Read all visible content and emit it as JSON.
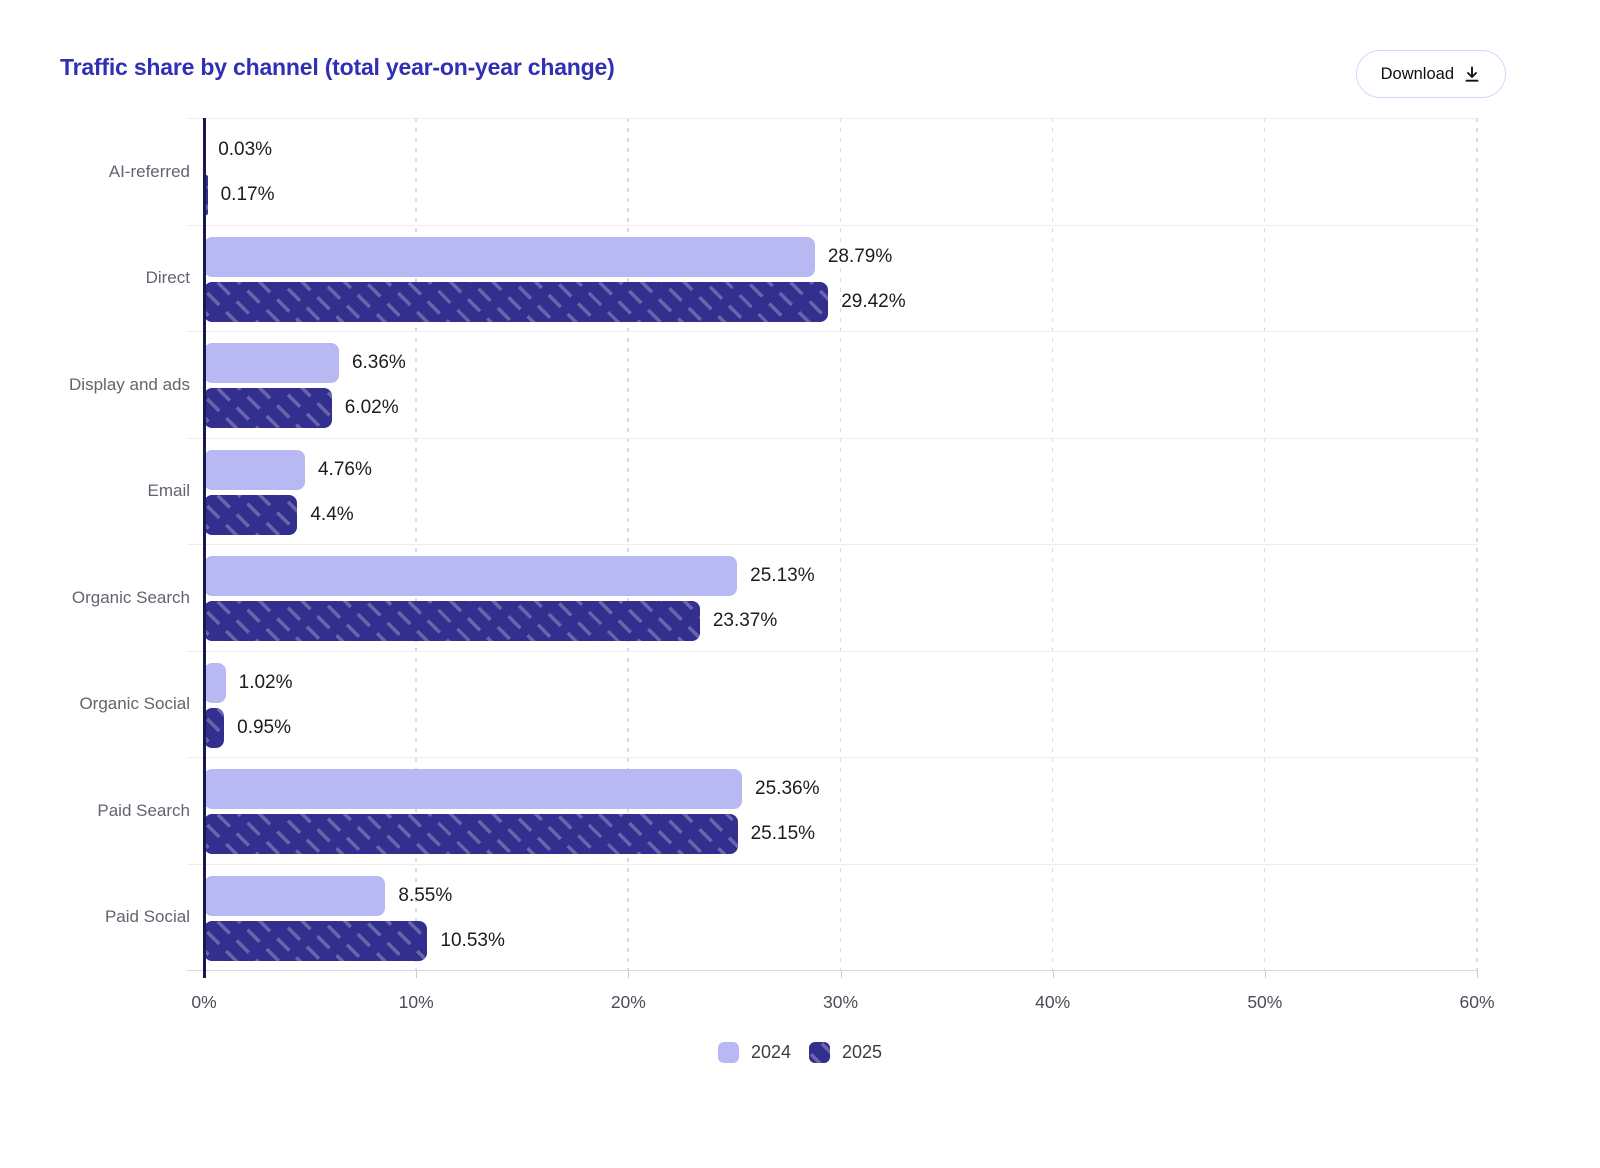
{
  "header": {
    "title": "Traffic share by channel (total year-on-year change)",
    "download_label": "Download"
  },
  "chart_data": {
    "type": "bar",
    "orientation": "horizontal",
    "title": "Traffic share by channel (total year-on-year change)",
    "categories": [
      "AI-referred",
      "Direct",
      "Display and ads",
      "Email",
      "Organic Search",
      "Organic Social",
      "Paid Search",
      "Paid Social"
    ],
    "series": [
      {
        "name": "2024",
        "color": "#b8b9f3",
        "hatched": false,
        "values": [
          0.03,
          28.79,
          6.36,
          4.76,
          25.13,
          1.02,
          25.36,
          8.55
        ]
      },
      {
        "name": "2025",
        "color": "#322f8e",
        "hatched": true,
        "values": [
          0.17,
          29.42,
          6.02,
          4.4,
          23.37,
          0.95,
          25.15,
          10.53
        ]
      }
    ],
    "labels": [
      [
        "0.03%",
        "0.17%"
      ],
      [
        "28.79%",
        "29.42%"
      ],
      [
        "6.36%",
        "6.02%"
      ],
      [
        "4.76%",
        "4.4%"
      ],
      [
        "25.13%",
        "23.37%"
      ],
      [
        "1.02%",
        "0.95%"
      ],
      [
        "25.36%",
        "25.15%"
      ],
      [
        "8.55%",
        "10.53%"
      ]
    ],
    "x_ticks": [
      "0%",
      "10%",
      "20%",
      "30%",
      "40%",
      "50%",
      "60%"
    ],
    "xlim": [
      0,
      60
    ],
    "grid": "vertical-dashed",
    "legend_position": "bottom",
    "legend": [
      "2024",
      "2025"
    ]
  },
  "colors": {
    "title": "#3130b4",
    "axis_line": "#1a1850",
    "series_2024": "#b8b9f3",
    "series_2025": "#322f8e",
    "hatch_stripe": "rgba(255,255,255,0.26)",
    "gridline": "#d9dae3",
    "separator": "#ededf2",
    "button_border": "#d6d7f8"
  }
}
